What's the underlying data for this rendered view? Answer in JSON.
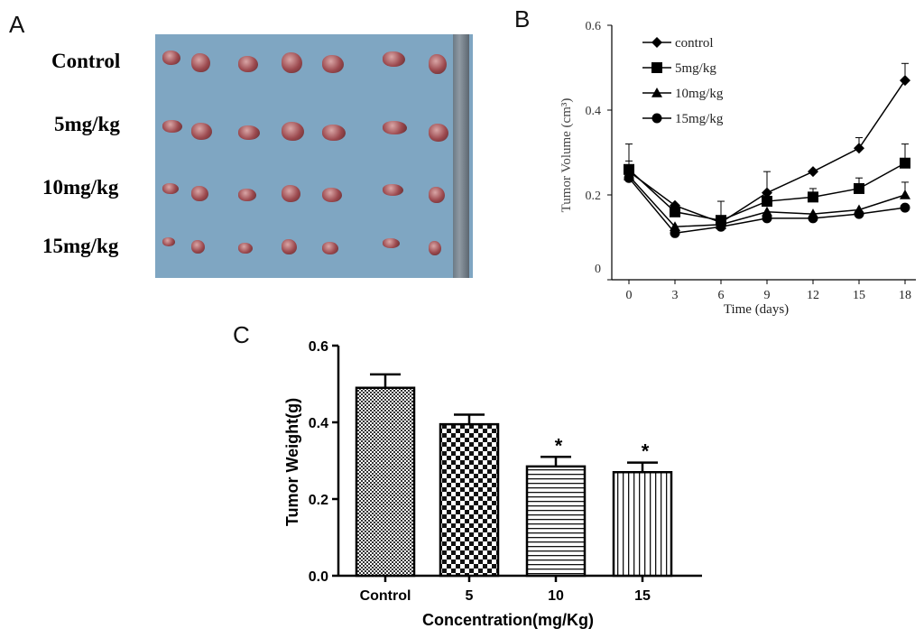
{
  "panel_letters": {
    "a": "A",
    "b": "B",
    "c": "C"
  },
  "photo": {
    "row_labels": [
      "Control",
      "5mg/kg",
      "10mg/kg",
      "15mg/kg"
    ]
  },
  "chart_data": [
    {
      "panel": "B",
      "type": "line",
      "title": "",
      "xlabel": "Time (days)",
      "ylabel": "Tumor Volume (cm³)",
      "x": [
        0,
        3,
        6,
        9,
        12,
        15,
        18
      ],
      "x_ticks": [
        "0",
        "3",
        "6",
        "9",
        "12",
        "15",
        "18"
      ],
      "y_ticks": [
        "0",
        "0.2",
        "0.4",
        "0.6"
      ],
      "xlim": [
        0,
        18
      ],
      "ylim": [
        0,
        0.6
      ],
      "legend_position": "top-left",
      "series": [
        {
          "name": "control",
          "marker": "diamond",
          "values": [
            0.255,
            0.175,
            0.135,
            0.205,
            0.255,
            0.31,
            0.47
          ],
          "errors": [
            0.065,
            0,
            0.05,
            0.05,
            0,
            0.025,
            0.04
          ]
        },
        {
          "name": "5mg/kg",
          "marker": "square",
          "values": [
            0.26,
            0.16,
            0.14,
            0.185,
            0.195,
            0.215,
            0.275
          ],
          "errors": [
            0.02,
            0,
            0,
            0.02,
            0.02,
            0.025,
            0.045
          ]
        },
        {
          "name": "10mg/kg",
          "marker": "triangle",
          "values": [
            0.245,
            0.125,
            0.13,
            0.16,
            0.155,
            0.165,
            0.2
          ],
          "errors": [
            0,
            0,
            0,
            0,
            0,
            0,
            0.03
          ]
        },
        {
          "name": "15mg/kg",
          "marker": "circle",
          "values": [
            0.24,
            0.11,
            0.125,
            0.145,
            0.145,
            0.155,
            0.17
          ],
          "errors": [
            0,
            0,
            0,
            0,
            0,
            0,
            0
          ]
        }
      ]
    },
    {
      "panel": "C",
      "type": "bar",
      "title": "",
      "xlabel": "Concentration(mg/Kg)",
      "ylabel": "Tumor Weight(g)",
      "categories": [
        "Control",
        "5",
        "10",
        "15"
      ],
      "values": [
        0.49,
        0.395,
        0.285,
        0.27
      ],
      "errors": [
        0.035,
        0.025,
        0.025,
        0.025
      ],
      "significance": [
        "",
        "",
        "*",
        "*"
      ],
      "y_ticks": [
        "0.0",
        "0.2",
        "0.4",
        "0.6"
      ],
      "ylim": [
        0,
        0.6
      ]
    }
  ]
}
